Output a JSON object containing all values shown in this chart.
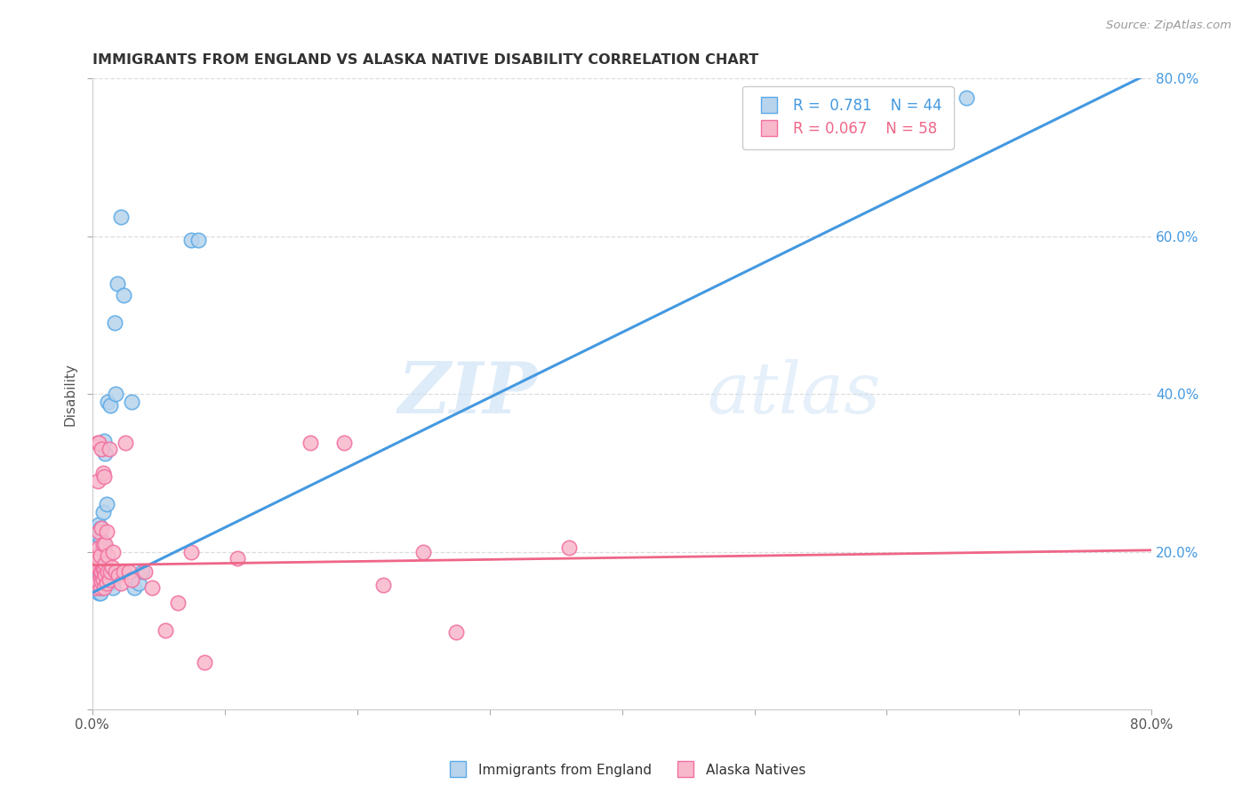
{
  "title": "IMMIGRANTS FROM ENGLAND VS ALASKA NATIVE DISABILITY CORRELATION CHART",
  "source": "Source: ZipAtlas.com",
  "ylabel": "Disability",
  "xlim": [
    0.0,
    0.8
  ],
  "ylim": [
    0.0,
    0.8
  ],
  "xtick_positions": [
    0.0,
    0.1,
    0.2,
    0.3,
    0.4,
    0.5,
    0.6,
    0.7,
    0.8
  ],
  "xtick_labels": [
    "0.0%",
    "",
    "",
    "",
    "",
    "",
    "",
    "",
    "80.0%"
  ],
  "ytick_positions": [
    0.0,
    0.2,
    0.4,
    0.6,
    0.8
  ],
  "ytick_right_labels": [
    "",
    "20.0%",
    "40.0%",
    "60.0%",
    "80.0%"
  ],
  "color_blue_fill": "#b8d4ec",
  "color_blue_edge": "#5aaae8",
  "color_pink_fill": "#f8b8cc",
  "color_pink_edge": "#f070a0",
  "color_blue_line": "#4499e0",
  "color_pink_line": "#ee6688",
  "watermark_zip": "ZIP",
  "watermark_atlas": "atlas",
  "grid_color": "#dddddd",
  "blue_line_x": [
    0.0,
    0.8
  ],
  "blue_line_y": [
    0.148,
    0.808
  ],
  "pink_line_x": [
    0.0,
    0.8
  ],
  "pink_line_y": [
    0.183,
    0.202
  ],
  "blue_points_x": [
    0.002,
    0.003,
    0.003,
    0.003,
    0.004,
    0.004,
    0.004,
    0.004,
    0.004,
    0.005,
    0.005,
    0.005,
    0.005,
    0.005,
    0.005,
    0.006,
    0.006,
    0.006,
    0.006,
    0.007,
    0.007,
    0.007,
    0.008,
    0.008,
    0.009,
    0.01,
    0.01,
    0.011,
    0.012,
    0.013,
    0.014,
    0.016,
    0.017,
    0.018,
    0.019,
    0.022,
    0.024,
    0.03,
    0.032,
    0.035,
    0.038,
    0.075,
    0.08,
    0.66
  ],
  "blue_points_y": [
    0.158,
    0.162,
    0.168,
    0.175,
    0.152,
    0.158,
    0.165,
    0.172,
    0.18,
    0.148,
    0.155,
    0.162,
    0.168,
    0.22,
    0.235,
    0.148,
    0.158,
    0.2,
    0.23,
    0.155,
    0.162,
    0.215,
    0.16,
    0.25,
    0.34,
    0.158,
    0.325,
    0.26,
    0.39,
    0.16,
    0.385,
    0.155,
    0.49,
    0.4,
    0.54,
    0.625,
    0.525,
    0.39,
    0.155,
    0.16,
    0.175,
    0.595,
    0.595,
    0.775
  ],
  "pink_points_x": [
    0.002,
    0.003,
    0.003,
    0.004,
    0.004,
    0.004,
    0.005,
    0.005,
    0.005,
    0.005,
    0.005,
    0.006,
    0.006,
    0.006,
    0.006,
    0.007,
    0.007,
    0.007,
    0.007,
    0.008,
    0.008,
    0.008,
    0.008,
    0.009,
    0.009,
    0.009,
    0.01,
    0.01,
    0.01,
    0.011,
    0.011,
    0.012,
    0.012,
    0.013,
    0.013,
    0.014,
    0.015,
    0.016,
    0.018,
    0.02,
    0.022,
    0.024,
    0.025,
    0.028,
    0.03,
    0.04,
    0.045,
    0.055,
    0.065,
    0.075,
    0.085,
    0.11,
    0.165,
    0.19,
    0.22,
    0.25,
    0.275,
    0.36
  ],
  "pink_points_y": [
    0.182,
    0.195,
    0.155,
    0.338,
    0.29,
    0.162,
    0.178,
    0.19,
    0.205,
    0.225,
    0.338,
    0.155,
    0.168,
    0.175,
    0.195,
    0.162,
    0.175,
    0.23,
    0.33,
    0.165,
    0.178,
    0.21,
    0.3,
    0.155,
    0.178,
    0.295,
    0.17,
    0.185,
    0.21,
    0.16,
    0.225,
    0.175,
    0.195,
    0.165,
    0.33,
    0.175,
    0.18,
    0.2,
    0.175,
    0.17,
    0.16,
    0.175,
    0.338,
    0.175,
    0.165,
    0.175,
    0.155,
    0.1,
    0.135,
    0.2,
    0.06,
    0.192,
    0.338,
    0.338,
    0.158,
    0.2,
    0.098,
    0.205
  ]
}
